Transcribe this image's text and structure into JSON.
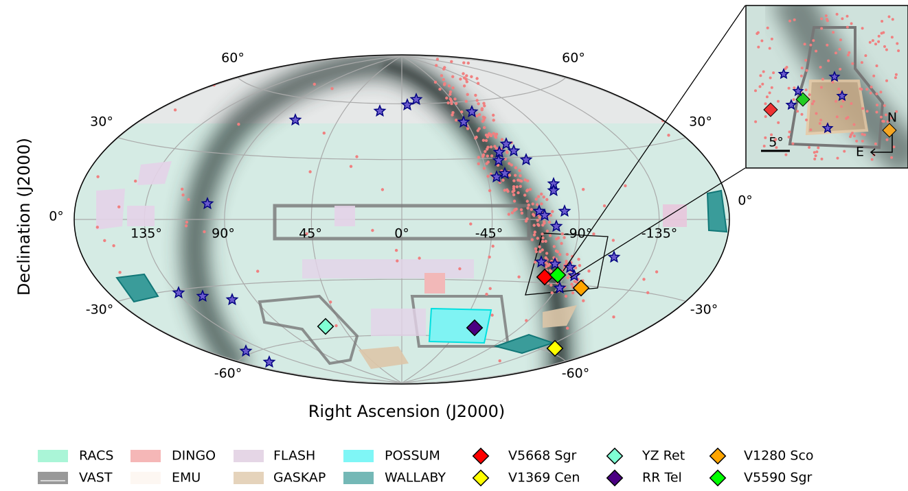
{
  "axes": {
    "x_label": "Right Ascension (J2000)",
    "y_label": "Declination (J2000)",
    "ra_ticks": [
      "135°",
      "90°",
      "45°",
      "0°",
      "-45°",
      "-90°",
      "-135°"
    ],
    "dec_ticks_left": [
      "60°",
      "30°",
      "0°",
      "-30°",
      "-60°"
    ],
    "dec_ticks_right": [
      "60°",
      "30°",
      "0°",
      "-30°",
      "-60°"
    ]
  },
  "inset": {
    "scale": "5°",
    "north": "N",
    "east": "E"
  },
  "legend": {
    "surveys": [
      "RACS",
      "VAST",
      "DINGO",
      "EMU",
      "FLASH",
      "GASKAP",
      "POSSUM",
      "WALLABY"
    ],
    "novae": [
      "V5668 Sgr",
      "V1369 Cen",
      "YZ Ret",
      "RR Tel",
      "V1280 Sco",
      "V5590 Sgr"
    ]
  }
}
